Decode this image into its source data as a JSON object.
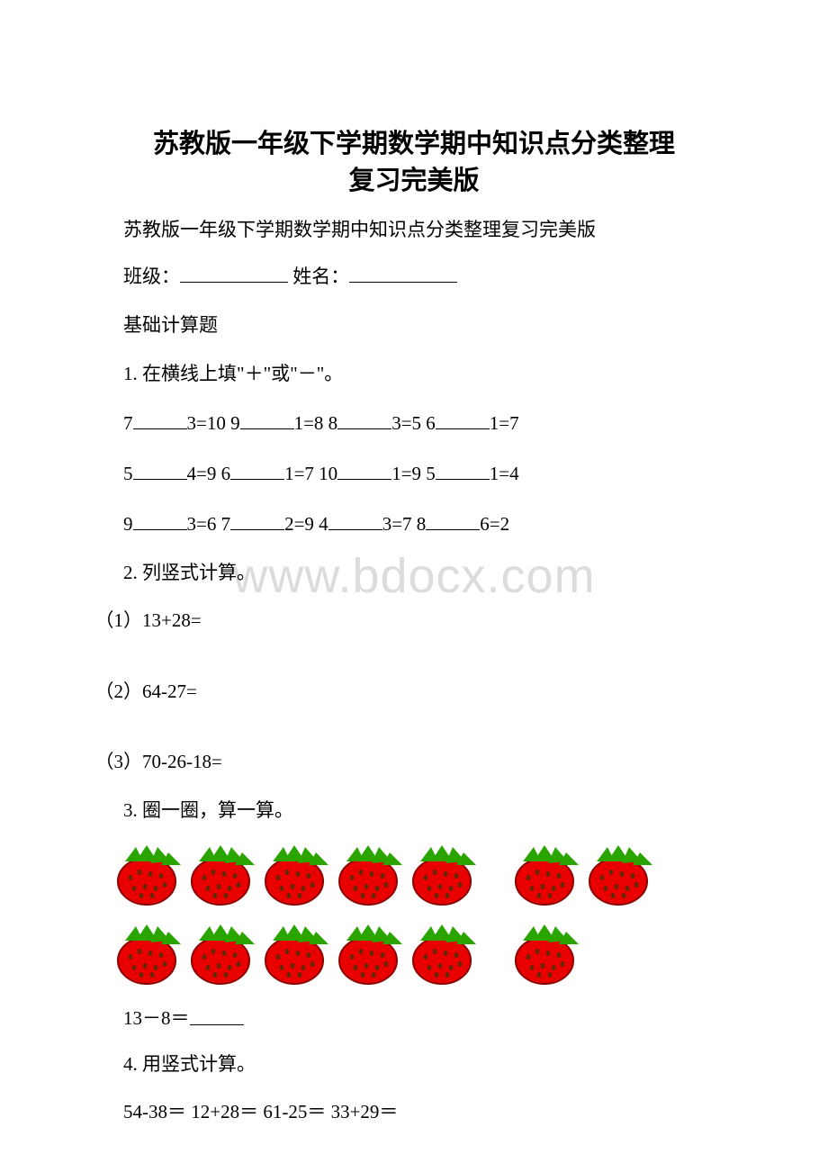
{
  "title_line1": "苏教版一年级下学期数学期中知识点分类整理",
  "title_line2": "复习完美版",
  "subtitle": "苏教版一年级下学期数学期中知识点分类整理复习完美版",
  "class_label": "班级：",
  "name_label": " 姓名：",
  "section": "基础计算题",
  "q1_prompt": "1. 在横线上填\"＋\"或\"－\"。",
  "q1_row1": {
    "a1": "7",
    "a2": "3=10 9",
    "a3": "1=8 8",
    "a4": "3=5 6",
    "a5": "1=7"
  },
  "q1_row2": {
    "a1": "5",
    "a2": "4=9 6",
    "a3": "1=7 10",
    "a4": "1=9 5",
    "a5": "1=4"
  },
  "q1_row3": {
    "a1": "9",
    "a2": "3=6 7",
    "a3": "2=9 4",
    "a4": "3=7 8",
    "a5": "6=2"
  },
  "q2_prompt": "2. 列竖式计算。",
  "q2_a": "（1）13+28=",
  "q2_b": "（2）64-27=",
  "q2_c": "（3）70-26-18=",
  "q3_prompt": "3. 圈一圈，算一算。",
  "q3_expr": "13－8＝",
  "q4_prompt": "4. 用竖式计算。",
  "q4_items": "54-38＝    12+28＝ 61-25＝ 33+29＝",
  "watermark": "www.bdocx.com",
  "strawberry": {
    "body_color": "#e90000",
    "leaf_color": "#2aa500",
    "seed_color": "#5a2a00",
    "stroke": "#8b0000",
    "rows": [
      {
        "groups": [
          5,
          2
        ]
      },
      {
        "groups": [
          5,
          1
        ]
      }
    ],
    "width": 78,
    "height": 70
  }
}
